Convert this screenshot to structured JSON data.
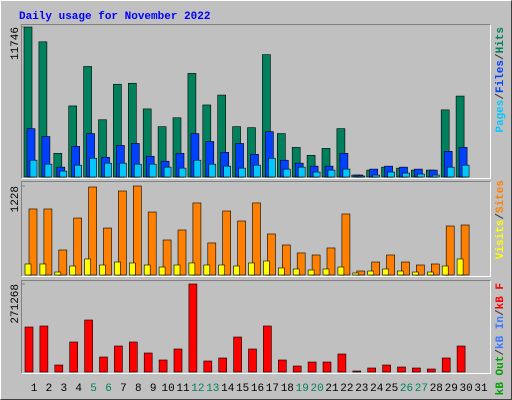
{
  "chart_data": [
    {
      "type": "bar",
      "title": "Daily usage for November 2022",
      "legend_separator": "/",
      "ylim": [
        0,
        11746
      ],
      "yticks": [
        11746
      ],
      "series": [
        {
          "name": "Hits",
          "color": "#00805c",
          "values": [
            11746,
            10587,
            1855,
            5564,
            8655,
            4482,
            7264,
            7341,
            5332,
            3941,
            4637,
            8114,
            5641,
            6414,
            3941,
            3864,
            9582,
            3400,
            2318,
            1700,
            2241,
            3787,
            155,
            541,
            773,
            695,
            541,
            541,
            5255,
            6337,
            0
          ]
        },
        {
          "name": "Files",
          "color": "#0040ff",
          "values": [
            3787,
            3168,
            773,
            2396,
            3400,
            1545,
            2473,
            2627,
            1623,
            1236,
            1855,
            3400,
            2782,
            1932,
            2627,
            1777,
            3555,
            1314,
            1082,
            850,
            850,
            1855,
            155,
            618,
            850,
            773,
            618,
            541,
            2009,
            2318,
            0
          ]
        },
        {
          "name": "Pages",
          "color": "#00c8ff",
          "values": [
            1314,
            1005,
            464,
            927,
            1468,
            1082,
            1082,
            1005,
            1005,
            773,
            695,
            1314,
            1005,
            850,
            695,
            927,
            1468,
            618,
            773,
            386,
            541,
            618,
            77,
            155,
            386,
            309,
            232,
            155,
            773,
            927,
            0
          ]
        }
      ]
    },
    {
      "type": "bar",
      "legend_separator": "/",
      "ylim": [
        0,
        1228
      ],
      "yticks": [
        1228
      ],
      "series": [
        {
          "name": "Sites",
          "color": "#ff8000",
          "values": [
            911,
            911,
            345,
            786,
            1214,
            648,
            1159,
            1228,
            869,
            483,
            621,
            994,
            442,
            883,
            745,
            994,
            566,
            414,
            304,
            276,
            373,
            842,
            55,
            179,
            276,
            179,
            138,
            152,
            676,
            690,
            0
          ]
        },
        {
          "name": "Visits",
          "color": "#ffff00",
          "values": [
            152,
            152,
            41,
            124,
            221,
            138,
            179,
            166,
            138,
            110,
            138,
            166,
            138,
            138,
            124,
            166,
            193,
            97,
            83,
            69,
            83,
            110,
            28,
            55,
            83,
            55,
            41,
            41,
            124,
            221,
            0
          ]
        }
      ]
    },
    {
      "type": "bar",
      "legend_separator": "/",
      "ylim": [
        0,
        271268
      ],
      "yticks": [
        271268
      ],
      "categories": [
        "1",
        "2",
        "3",
        "4",
        "5",
        "6",
        "7",
        "8",
        "9",
        "10",
        "11",
        "12",
        "13",
        "14",
        "15",
        "16",
        "17",
        "18",
        "19",
        "20",
        "21",
        "22",
        "23",
        "24",
        "25",
        "26",
        "27",
        "28",
        "29",
        "30",
        "31"
      ],
      "category_colors": [
        "#000000",
        "#000000",
        "#000000",
        "#000000",
        "#00805c",
        "#00805c",
        "#000000",
        "#000000",
        "#000000",
        "#000000",
        "#000000",
        "#00805c",
        "#00805c",
        "#000000",
        "#000000",
        "#000000",
        "#000000",
        "#000000",
        "#00805c",
        "#00805c",
        "#000000",
        "#000000",
        "#000000",
        "#000000",
        "#000000",
        "#00805c",
        "#00805c",
        "#000000",
        "#000000",
        "#000000",
        "#000000"
      ],
      "series": [
        {
          "name": "kB F",
          "color": "#ff0000",
          "values": [
            138717,
            141796,
            21578,
            92478,
            160294,
            46239,
            80148,
            92478,
            58570,
            36991,
            70900,
            271268,
            33909,
            43157,
            107890,
            70900,
            141796,
            36991,
            18496,
            30826,
            30826,
            55487,
            3083,
            12330,
            21578,
            15413,
            12330,
            9248,
            43157,
            80148,
            0
          ]
        },
        {
          "name": "kB In",
          "color": "#3c78ff"
        },
        {
          "name": "kB Out",
          "color": "#00a000"
        }
      ]
    }
  ]
}
